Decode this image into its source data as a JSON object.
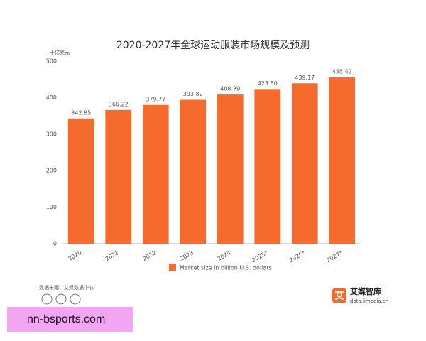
{
  "chart_data": {
    "type": "bar",
    "title": "2020-2027年全球运动服装市场规模及预测",
    "y_unit": "十亿美元",
    "categories": [
      "2020",
      "2021",
      "2022",
      "2023",
      "2024",
      "2025*",
      "2026*",
      "2027*"
    ],
    "series": [
      {
        "name": "Market size in billion U.S. dollars",
        "color": "#f56b2e",
        "values": [
          342.85,
          366.22,
          379.77,
          393.82,
          408.39,
          423.5,
          439.17,
          455.42
        ],
        "value_labels": [
          "342.85",
          "366.22",
          "379.77",
          "393.82",
          "408.39",
          "423.50",
          "439.17",
          "455.42"
        ]
      }
    ],
    "ylim": [
      0,
      500
    ],
    "yticks": [
      0,
      100,
      200,
      300,
      400,
      500
    ],
    "grid": false
  },
  "source": "数据来源：艾媒数据中心",
  "logo": {
    "mark": "艾",
    "name": "艾媒智库",
    "url": "data.iimedia.cn"
  },
  "banner": "nn-bsports.com"
}
